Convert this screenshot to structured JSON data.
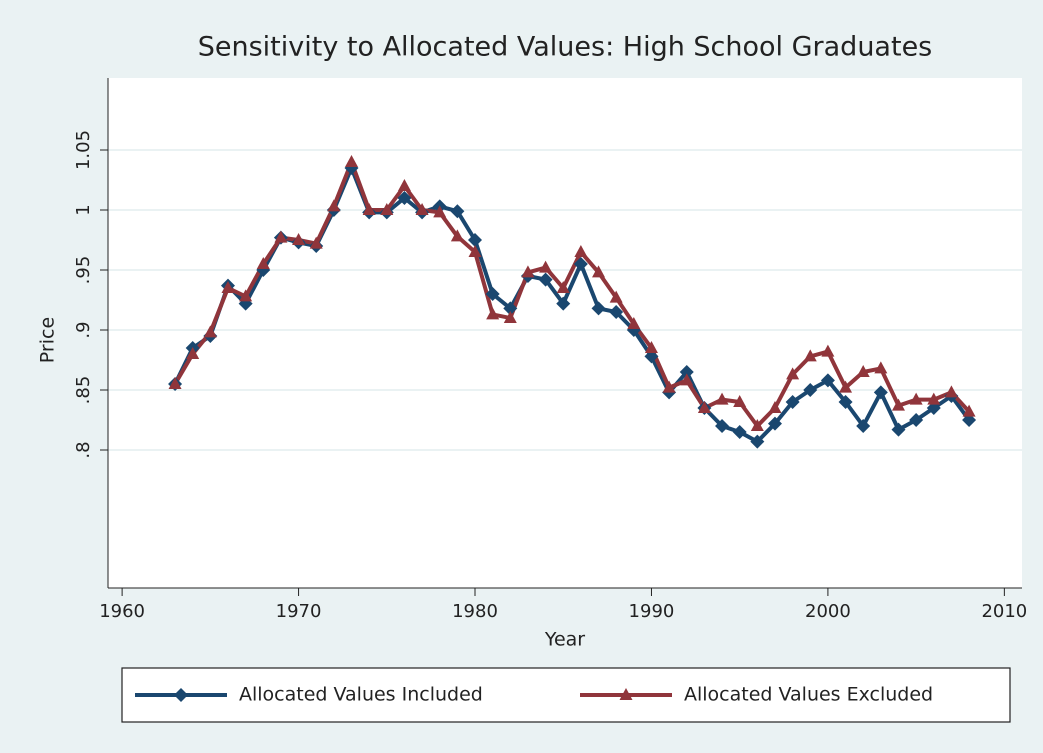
{
  "chart_data": {
    "type": "line",
    "title": "Sensitivity to Allocated Values: High School Graduates",
    "x_label": "Year",
    "y_label": "Price",
    "x": [
      1963,
      1964,
      1965,
      1966,
      1967,
      1968,
      1969,
      1970,
      1971,
      1972,
      1973,
      1974,
      1975,
      1976,
      1977,
      1978,
      1979,
      1980,
      1981,
      1982,
      1983,
      1984,
      1985,
      1986,
      1987,
      1988,
      1989,
      1990,
      1991,
      1992,
      1993,
      1994,
      1995,
      1996,
      1997,
      1998,
      1999,
      2000,
      2001,
      2002,
      2003,
      2004,
      2005,
      2006,
      2007,
      2008
    ],
    "series": [
      {
        "name": "Allocated Values Included",
        "color": "#1a476f",
        "marker": "diamond",
        "values": [
          0.855,
          0.885,
          0.895,
          0.937,
          0.922,
          0.95,
          0.977,
          0.973,
          0.97,
          1.0,
          1.035,
          0.998,
          0.998,
          1.01,
          0.998,
          1.003,
          0.999,
          0.975,
          0.93,
          0.918,
          0.945,
          0.942,
          0.922,
          0.955,
          0.918,
          0.915,
          0.9,
          0.878,
          0.848,
          0.865,
          0.835,
          0.82,
          0.815,
          0.807,
          0.822,
          0.84,
          0.85,
          0.858,
          0.84,
          0.82,
          0.848,
          0.817,
          0.825,
          0.835,
          0.845,
          0.825
        ]
      },
      {
        "name": "Allocated Values Excluded",
        "color": "#90353b",
        "marker": "triangle",
        "values": [
          0.855,
          0.88,
          0.898,
          0.935,
          0.928,
          0.955,
          0.977,
          0.975,
          0.972,
          1.003,
          1.04,
          1.0,
          1.0,
          1.02,
          1.0,
          0.998,
          0.978,
          0.965,
          0.913,
          0.91,
          0.948,
          0.952,
          0.935,
          0.965,
          0.948,
          0.927,
          0.905,
          0.885,
          0.852,
          0.858,
          0.835,
          0.842,
          0.84,
          0.82,
          0.835,
          0.863,
          0.878,
          0.882,
          0.852,
          0.865,
          0.868,
          0.837,
          0.842,
          0.842,
          0.848,
          0.832
        ]
      }
    ],
    "xlim": [
      1959.2,
      2011
    ],
    "xticks": [
      1960,
      1970,
      1980,
      1990,
      2000,
      2010
    ],
    "ylim": [
      0.685,
      1.11
    ],
    "yticks": [
      {
        "value": 0.8,
        "label": ".8"
      },
      {
        "value": 0.85,
        "label": ".85"
      },
      {
        "value": 0.9,
        "label": ".9"
      },
      {
        "value": 0.95,
        "label": ".95"
      },
      1,
      1.05
    ],
    "grid": true,
    "legend": "bottom"
  }
}
